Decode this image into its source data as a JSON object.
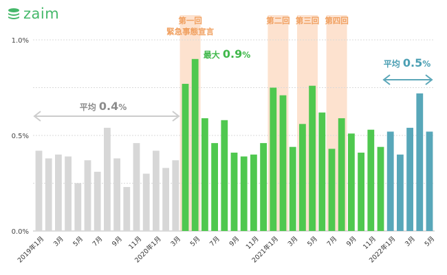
{
  "brand": {
    "name": "zaim",
    "color": "#45b86a"
  },
  "chart_data": {
    "type": "bar",
    "ylim": [
      0,
      1.0
    ],
    "yticks": [
      {
        "value": 0,
        "label": "0.0%"
      },
      {
        "value": 0.5,
        "label": "0.5%"
      },
      {
        "value": 1.0,
        "label": "1.0%"
      }
    ],
    "grid_values": [
      0.25,
      0.5,
      0.75,
      1.0
    ],
    "categories": [
      "2019年1月",
      "",
      "3月",
      "",
      "5月",
      "",
      "7月",
      "",
      "9月",
      "",
      "11月",
      "",
      "2020年1月",
      "",
      "3月",
      "",
      "5月",
      "",
      "7月",
      "",
      "9月",
      "",
      "11月",
      "",
      "2021年1月",
      "",
      "3月",
      "",
      "5月",
      "",
      "7月",
      "",
      "9月",
      "",
      "11月",
      "",
      "2022年1月",
      "",
      "3月",
      "",
      "5月"
    ],
    "values": [
      0.42,
      0.38,
      0.4,
      0.39,
      0.25,
      0.37,
      0.31,
      0.54,
      0.38,
      0.23,
      0.46,
      0.3,
      0.42,
      0.33,
      0.37,
      0.77,
      0.9,
      0.59,
      0.46,
      0.58,
      0.41,
      0.39,
      0.4,
      0.46,
      0.75,
      0.71,
      0.44,
      0.56,
      0.76,
      0.62,
      0.43,
      0.59,
      0.51,
      0.41,
      0.53,
      0.44,
      0.52,
      0.4,
      0.54,
      0.72,
      0.52
    ],
    "colors": {
      "gray": "#d7d7d7",
      "green": "#4fc84f",
      "blue": "#58a7b9",
      "highlight": "#fde2cf"
    },
    "segments": [
      {
        "from": 0,
        "to": 14,
        "color": "gray"
      },
      {
        "from": 15,
        "to": 35,
        "color": "green"
      },
      {
        "from": 36,
        "to": 40,
        "color": "blue"
      }
    ],
    "highlights": [
      {
        "from": 15,
        "to": 16,
        "label": [
          "第一回",
          "緊急事態宣言"
        ]
      },
      {
        "from": 24,
        "to": 25,
        "label": [
          "第二回"
        ]
      },
      {
        "from": 27,
        "to": 28,
        "label": [
          "第三回"
        ]
      },
      {
        "from": 30,
        "to": 31,
        "label": [
          "第四回"
        ]
      }
    ],
    "annotations": [
      {
        "id": "avg-2019",
        "prefix": "平均 ",
        "value": "0.4",
        "unit": "%",
        "color": "#8c8c8c",
        "from": 0,
        "to": 14,
        "arrow": true
      },
      {
        "id": "max",
        "prefix": "最大 ",
        "value": "0.9",
        "unit": "%",
        "color": "#3fb84a",
        "arrow": false
      },
      {
        "id": "avg-2022",
        "prefix": "平均 ",
        "value": "0.5",
        "unit": "%",
        "color": "#4b9fb3",
        "from": 36,
        "to": 40,
        "arrow": true
      }
    ]
  }
}
